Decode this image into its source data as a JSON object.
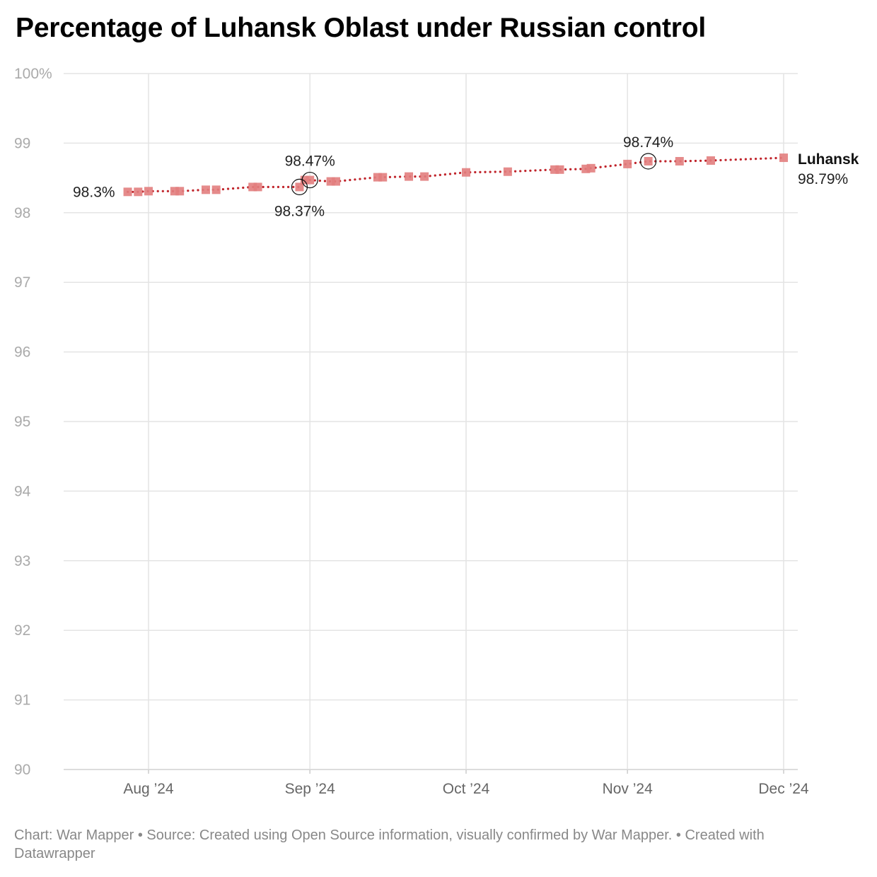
{
  "title": "Percentage of Luhansk Oblast under Russian control",
  "footer": "Chart: War Mapper • Source: Created using Open Source information, visually confirmed by War Mapper. • Created with Datawrapper",
  "chart_data": {
    "type": "line",
    "title": "Percentage of Luhansk Oblast under Russian control",
    "xlabel": "",
    "ylabel": "",
    "ylim": [
      90,
      100
    ],
    "xlim": [
      "2024-08-01",
      "2024-12-01"
    ],
    "y_ticks": [
      "90",
      "91",
      "92",
      "93",
      "94",
      "95",
      "96",
      "97",
      "98",
      "99",
      "100%"
    ],
    "x_ticks": [
      {
        "date": "2024-08-01",
        "label": "Aug ’24"
      },
      {
        "date": "2024-09-01",
        "label": "Sep ’24"
      },
      {
        "date": "2024-10-01",
        "label": "Oct ’24"
      },
      {
        "date": "2024-11-01",
        "label": "Nov ’24"
      },
      {
        "date": "2024-12-01",
        "label": "Dec ’24"
      }
    ],
    "grid": true,
    "line_color": "#c0242b",
    "marker_color": "#e27e7e",
    "series": [
      {
        "name": "Luhansk",
        "end_label": "98.79%",
        "points": [
          {
            "x": "2024-07-28",
            "y": 98.3
          },
          {
            "x": "2024-07-30",
            "y": 98.3
          },
          {
            "x": "2024-08-01",
            "y": 98.31
          },
          {
            "x": "2024-08-06",
            "y": 98.31
          },
          {
            "x": "2024-08-07",
            "y": 98.31
          },
          {
            "x": "2024-08-12",
            "y": 98.33
          },
          {
            "x": "2024-08-14",
            "y": 98.33
          },
          {
            "x": "2024-08-21",
            "y": 98.37
          },
          {
            "x": "2024-08-22",
            "y": 98.37
          },
          {
            "x": "2024-08-30",
            "y": 98.37
          },
          {
            "x": "2024-08-31",
            "y": 98.47
          },
          {
            "x": "2024-09-01",
            "y": 98.47
          },
          {
            "x": "2024-09-05",
            "y": 98.45
          },
          {
            "x": "2024-09-06",
            "y": 98.45
          },
          {
            "x": "2024-09-14",
            "y": 98.51
          },
          {
            "x": "2024-09-15",
            "y": 98.51
          },
          {
            "x": "2024-09-20",
            "y": 98.52
          },
          {
            "x": "2024-09-23",
            "y": 98.52
          },
          {
            "x": "2024-10-01",
            "y": 98.58
          },
          {
            "x": "2024-10-09",
            "y": 98.59
          },
          {
            "x": "2024-10-18",
            "y": 98.62
          },
          {
            "x": "2024-10-19",
            "y": 98.62
          },
          {
            "x": "2024-10-24",
            "y": 98.63
          },
          {
            "x": "2024-10-25",
            "y": 98.64
          },
          {
            "x": "2024-11-01",
            "y": 98.7
          },
          {
            "x": "2024-11-05",
            "y": 98.74
          },
          {
            "x": "2024-11-11",
            "y": 98.74
          },
          {
            "x": "2024-11-17",
            "y": 98.75
          },
          {
            "x": "2024-12-01",
            "y": 98.79
          }
        ]
      }
    ],
    "annotations": [
      {
        "x": "2024-07-28",
        "y": 98.3,
        "label": "98.3%",
        "position": "left",
        "circled": false
      },
      {
        "x": "2024-08-30",
        "y": 98.37,
        "label": "98.37%",
        "position": "below",
        "circled": true
      },
      {
        "x": "2024-09-01",
        "y": 98.47,
        "label": "98.47%",
        "position": "above",
        "circled": true
      },
      {
        "x": "2024-11-05",
        "y": 98.74,
        "label": "98.74%",
        "position": "above",
        "circled": true
      }
    ]
  }
}
